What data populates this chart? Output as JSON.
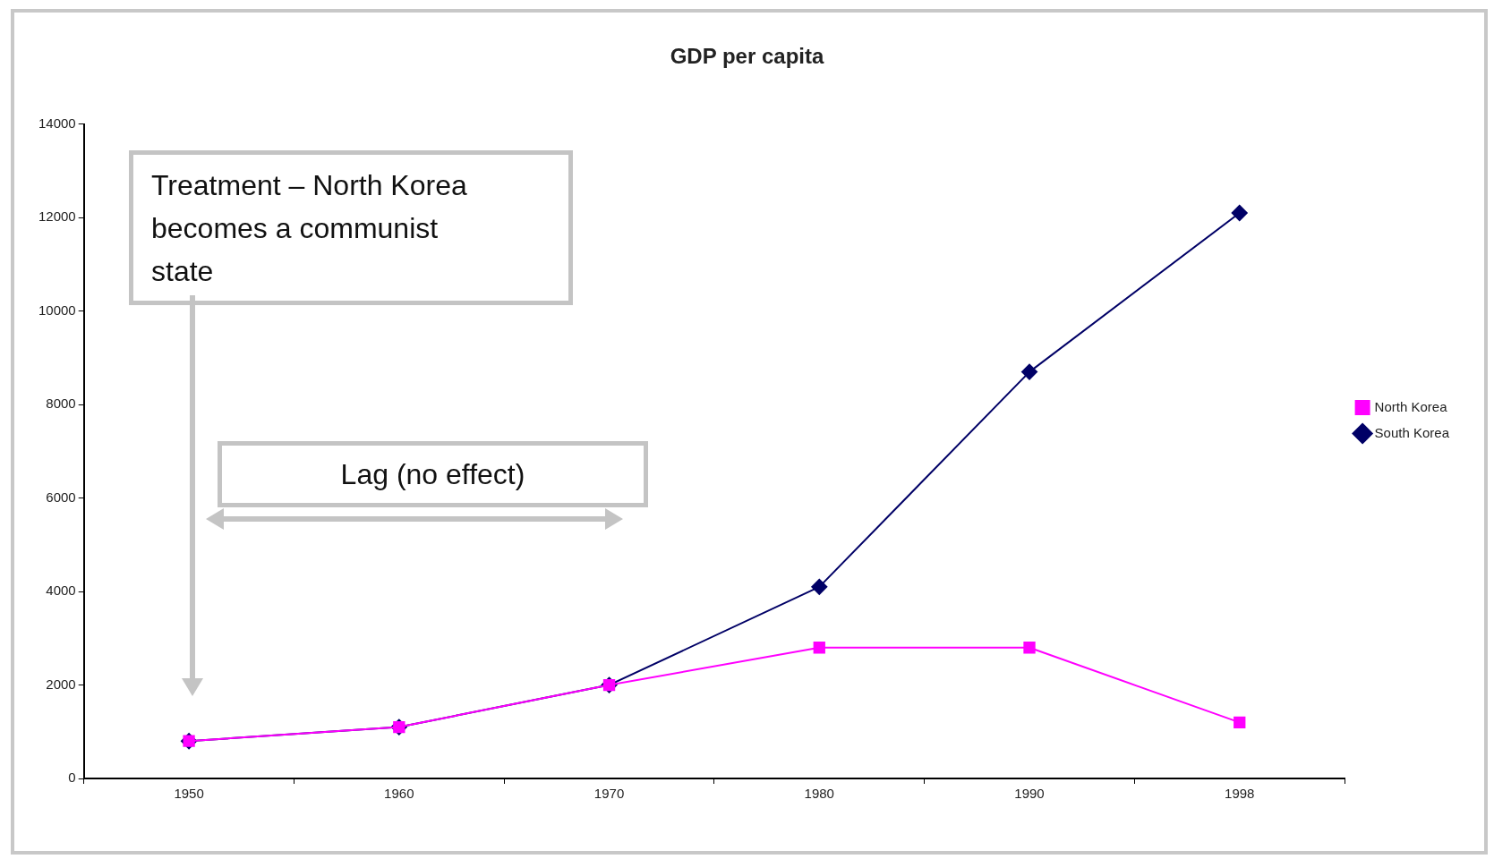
{
  "chart_data": {
    "type": "line",
    "title": "GDP per capita",
    "categories": [
      "1950",
      "1960",
      "1970",
      "1980",
      "1990",
      "1998"
    ],
    "series": [
      {
        "name": "South Korea",
        "color": "#000066",
        "marker": "diamond",
        "values": [
          800,
          1100,
          2000,
          4100,
          8700,
          12100
        ]
      },
      {
        "name": "North Korea",
        "color": "#ff00ff",
        "marker": "square",
        "values": [
          800,
          1100,
          2000,
          2800,
          2800,
          1200
        ]
      }
    ],
    "ylim": [
      0,
      14000
    ],
    "yticks": [
      0,
      2000,
      4000,
      6000,
      8000,
      10000,
      12000,
      14000
    ],
    "grid": false,
    "legend": "right",
    "line_style": "solid",
    "annotations": [
      "Treatment – North Korea becomes a communist state",
      "Lag (no effect)"
    ]
  }
}
